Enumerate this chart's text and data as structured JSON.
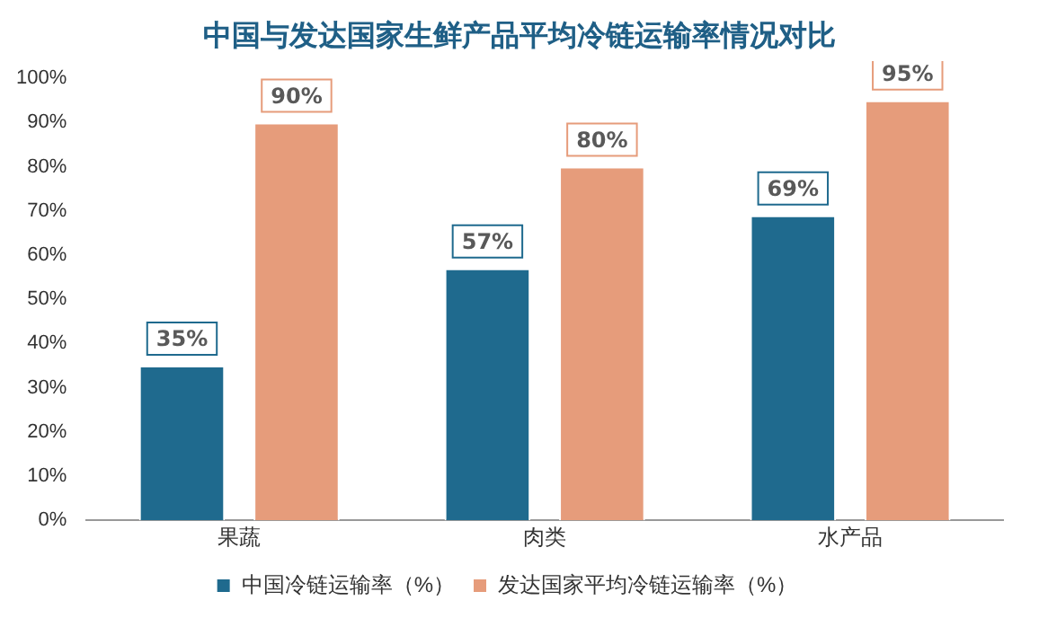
{
  "chart_data": {
    "type": "bar",
    "title": "中国与发达国家生鲜产品平均冷链运输率情况对比",
    "categories": [
      "果蔬",
      "肉类",
      "水产品"
    ],
    "series": [
      {
        "name": "中国冷链运输率（%）",
        "color": "#1f6a8e",
        "values": [
          35,
          57,
          69
        ],
        "value_labels": [
          "35%",
          "57%",
          "69%"
        ]
      },
      {
        "name": "发达国家平均冷链运输率（%）",
        "color": "#e69c7b",
        "values": [
          90,
          80,
          95
        ],
        "value_labels": [
          "90%",
          "80%",
          "95%"
        ]
      }
    ],
    "ylim": [
      0,
      100
    ],
    "yticks": [
      {
        "value": 0,
        "label": "0%"
      },
      {
        "value": 10,
        "label": "10%"
      },
      {
        "value": 20,
        "label": "20%"
      },
      {
        "value": 30,
        "label": "30%"
      },
      {
        "value": 40,
        "label": "40%"
      },
      {
        "value": 50,
        "label": "50%"
      },
      {
        "value": 60,
        "label": "60%"
      },
      {
        "value": 70,
        "label": "70%"
      },
      {
        "value": 80,
        "label": "80%"
      },
      {
        "value": 90,
        "label": "90%"
      },
      {
        "value": 100,
        "label": "100%"
      }
    ],
    "grid": false,
    "legend": "bottom"
  }
}
